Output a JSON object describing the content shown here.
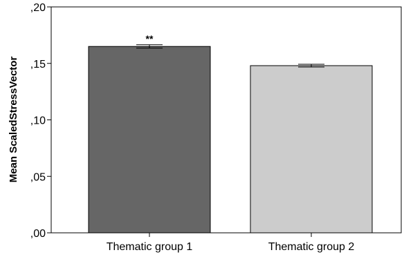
{
  "chart_data": {
    "type": "bar",
    "title": "",
    "xlabel": "",
    "ylabel": "Mean ScaledStressVector",
    "categories": [
      "Thematic group 1",
      "Thematic group 2"
    ],
    "values": [
      0.165,
      0.148
    ],
    "error": [
      0.0015,
      0.0012
    ],
    "colors": [
      "#666666",
      "#cccccc"
    ],
    "annotations": [
      "**",
      ""
    ],
    "ylim": [
      0,
      0.2
    ],
    "yticks": [
      0,
      0.05,
      0.1,
      0.15,
      0.2
    ],
    "ytick_labels": [
      ",00",
      ",05",
      ",10",
      ",15",
      ",20"
    ],
    "grid": false,
    "legend": "none"
  }
}
